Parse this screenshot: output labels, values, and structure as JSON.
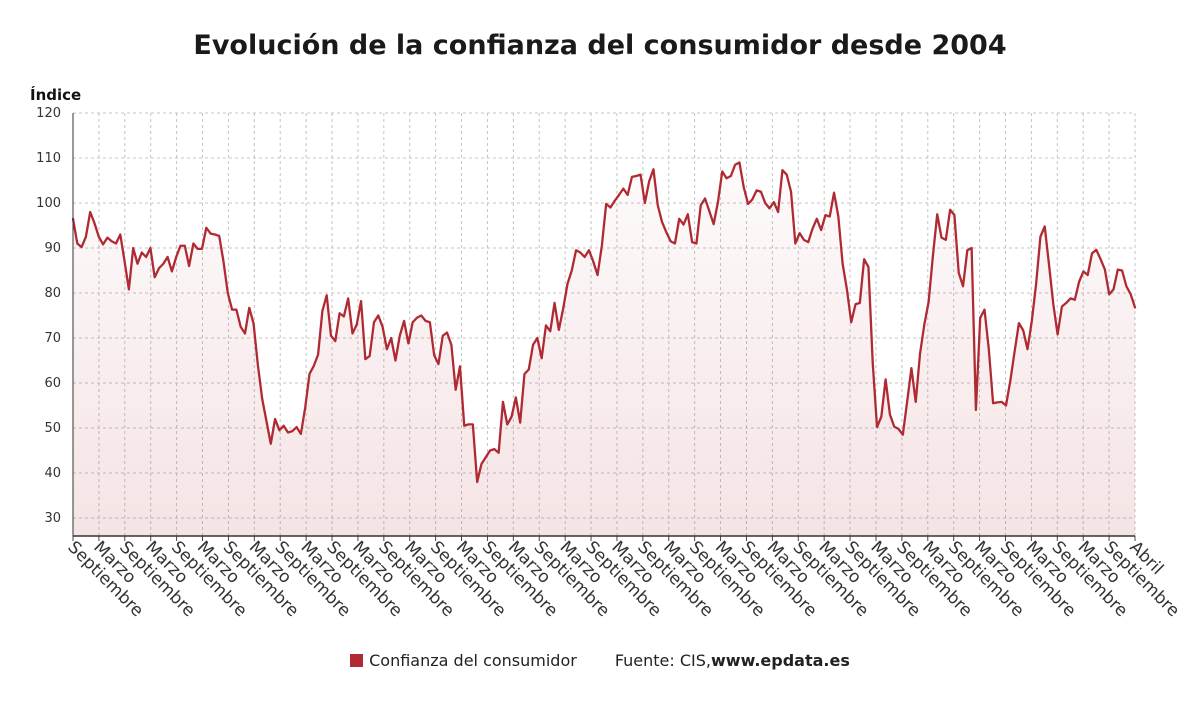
{
  "chart_data": {
    "type": "area",
    "title": "Evolución de la confianza del consumidor desde 2004",
    "ylabel": "Índice",
    "xlabel": "",
    "ylim": [
      26,
      120
    ],
    "yticks": [
      30,
      40,
      50,
      60,
      70,
      80,
      90,
      100,
      110,
      120
    ],
    "grid": true,
    "legend_position": "bottom",
    "x_tick_labels": [
      "Septiembre",
      "Marzo",
      "Septiembre",
      "Marzo",
      "Septiembre",
      "Marzo",
      "Septiembre",
      "Marzo",
      "Septiembre",
      "Marzo",
      "Septiembre",
      "Marzo",
      "Septiembre",
      "Marzo",
      "Septiembre",
      "Marzo",
      "Septiembre",
      "Marzo",
      "Septiembre",
      "Marzo",
      "Septiembre",
      "Marzo",
      "Septiembre",
      "Marzo",
      "Septiembre",
      "Marzo",
      "Septiembre",
      "Marzo",
      "Septiembre",
      "Marzo",
      "Septiembre",
      "Marzo",
      "Septiembre",
      "Marzo",
      "Septiembre",
      "Marzo",
      "Septiembre",
      "Marzo",
      "Septiembre",
      "Marzo",
      "Septiembre",
      "Abril"
    ],
    "series": [
      {
        "name": "Confianza del consumidor",
        "color": "#b02a33",
        "values": [
          96.5,
          91,
          90.2,
          92.5,
          98,
          95.5,
          92.5,
          90.8,
          92.3,
          91.5,
          91,
          93,
          87,
          80.8,
          90,
          86.5,
          89,
          88,
          90,
          83.5,
          85.5,
          86.5,
          88,
          84.8,
          88,
          90.5,
          90.5,
          86,
          91,
          89.8,
          89.8,
          94.5,
          93.2,
          93,
          92.7,
          87,
          80,
          76.3,
          76.3,
          72.5,
          71,
          76.7,
          73.2,
          64,
          56.5,
          51.5,
          46.5,
          52,
          49.5,
          50.5,
          49,
          49.3,
          50.2,
          48.7,
          54.5,
          62,
          63.8,
          66.3,
          76,
          79.5,
          70.5,
          69.3,
          75.5,
          74.8,
          78.8,
          71,
          73,
          78.2,
          65.3,
          66,
          73.5,
          75,
          72.5,
          67.5,
          70,
          65,
          70.5,
          73.8,
          68.8,
          73.5,
          74.5,
          75,
          73.8,
          73.5,
          66.2,
          64.2,
          70.5,
          71.2,
          68.5,
          58.5,
          63.7,
          50.5,
          50.8,
          50.8,
          38,
          42,
          43.5,
          45,
          45.3,
          44.5,
          55.8,
          50.8,
          52.5,
          56.8,
          51.2,
          62,
          63,
          68.5,
          70,
          65.5,
          72.8,
          71.5,
          77.8,
          71.8,
          76.5,
          82,
          85,
          89.5,
          89,
          88,
          89.5,
          87,
          84,
          90.5,
          99.8,
          99,
          100.5,
          101.8,
          103.2,
          101.8,
          105.8,
          106,
          106.3,
          100,
          104.8,
          107.5,
          99.5,
          95.8,
          93.5,
          91.5,
          91,
          96.5,
          95.2,
          97.5,
          91.3,
          91,
          99.5,
          101,
          98.2,
          95.3,
          100.2,
          107,
          105.5,
          106,
          108.5,
          109,
          103.5,
          99.8,
          100.8,
          102.8,
          102.5,
          100,
          98.8,
          100.2,
          98,
          107.3,
          106.3,
          102.5,
          91,
          93.3,
          91.8,
          91.3,
          94.3,
          96.5,
          94,
          97.3,
          97,
          102.3,
          97,
          86.5,
          80.8,
          73.5,
          77.5,
          77.8,
          87.5,
          85.8,
          64.5,
          50.2,
          52.5,
          60.8,
          53,
          50.3,
          49.8,
          48.5,
          55.8,
          63.3,
          55.8,
          66.5,
          73,
          78,
          88.3,
          97.5,
          92.3,
          91.8,
          98.5,
          97.3,
          84.5,
          81.5,
          89.5,
          90,
          54,
          74.5,
          76.3,
          67.5,
          55.5,
          55.7,
          55.8,
          55,
          60.5,
          67,
          73.3,
          71.7,
          67.5,
          73.8,
          82,
          92.5,
          94.8,
          86.3,
          77.5,
          70.8,
          77,
          77.8,
          78.8,
          78.5,
          82.5,
          84.8,
          84,
          88.8,
          89.6,
          87.5,
          85.2,
          79.7,
          80.8,
          85.2,
          85,
          81.5,
          79.7,
          76.8
        ]
      }
    ]
  },
  "legend": {
    "label": "Confianza del consumidor",
    "color": "#b02a33"
  },
  "source": {
    "prefix": "Fuente: CIS, ",
    "url": "www.epdata.es"
  }
}
